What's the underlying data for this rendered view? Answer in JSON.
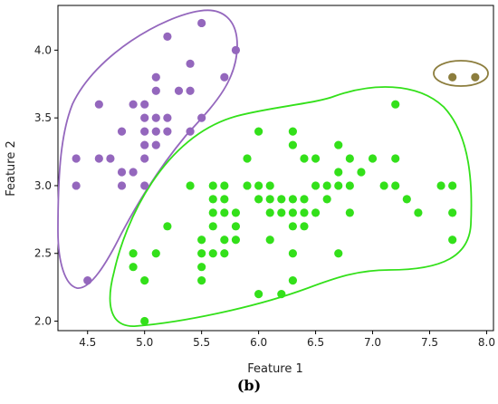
{
  "chart_data": {
    "type": "scatter",
    "xlabel": "Feature 1",
    "ylabel": "Feature 2",
    "xlim": [
      4.24,
      8.06
    ],
    "ylim": [
      1.93,
      4.33
    ],
    "xticks": [
      "4.5",
      "5.0",
      "5.5",
      "6.0",
      "6.5",
      "7.0",
      "7.5",
      "8.0"
    ],
    "yticks": [
      "2.0",
      "2.5",
      "3.0",
      "3.5",
      "4.0"
    ],
    "grid": false,
    "caption": "(b)",
    "colors": {
      "purple": "#9467bd",
      "green": "#33e01a",
      "olive": "#8c7d3d"
    },
    "series": [
      {
        "color": "#9467bd",
        "points": [
          [
            4.4,
            3.2
          ],
          [
            4.4,
            3.0
          ],
          [
            4.5,
            2.3
          ],
          [
            4.6,
            3.6
          ],
          [
            4.6,
            3.2
          ],
          [
            4.7,
            3.2
          ],
          [
            4.8,
            3.4
          ],
          [
            4.8,
            3.1
          ],
          [
            4.8,
            3.0
          ],
          [
            4.9,
            3.6
          ],
          [
            4.9,
            3.1
          ],
          [
            5.0,
            3.6
          ],
          [
            5.0,
            3.5
          ],
          [
            5.0,
            3.4
          ],
          [
            5.0,
            3.3
          ],
          [
            5.0,
            3.2
          ],
          [
            5.0,
            3.0
          ],
          [
            5.1,
            3.8
          ],
          [
            5.1,
            3.7
          ],
          [
            5.1,
            3.5
          ],
          [
            5.1,
            3.4
          ],
          [
            5.1,
            3.3
          ],
          [
            5.2,
            3.5
          ],
          [
            5.2,
            3.4
          ],
          [
            5.2,
            4.1
          ],
          [
            5.3,
            3.7
          ],
          [
            5.4,
            3.9
          ],
          [
            5.4,
            3.7
          ],
          [
            5.4,
            3.4
          ],
          [
            5.5,
            4.2
          ],
          [
            5.5,
            3.5
          ],
          [
            5.7,
            3.8
          ],
          [
            5.8,
            4.0
          ]
        ]
      },
      {
        "color": "#33e01a",
        "points": [
          [
            4.9,
            2.5
          ],
          [
            4.9,
            2.4
          ],
          [
            5.0,
            2.0
          ],
          [
            5.0,
            2.3
          ],
          [
            5.1,
            2.5
          ],
          [
            5.2,
            2.7
          ],
          [
            5.4,
            3.0
          ],
          [
            5.5,
            2.6
          ],
          [
            5.5,
            2.5
          ],
          [
            5.5,
            2.4
          ],
          [
            5.5,
            2.3
          ],
          [
            5.6,
            3.0
          ],
          [
            5.6,
            2.9
          ],
          [
            5.6,
            2.8
          ],
          [
            5.6,
            2.7
          ],
          [
            5.6,
            2.5
          ],
          [
            5.7,
            3.0
          ],
          [
            5.7,
            2.9
          ],
          [
            5.7,
            2.8
          ],
          [
            5.7,
            2.6
          ],
          [
            5.7,
            2.5
          ],
          [
            5.8,
            2.8
          ],
          [
            5.8,
            2.7
          ],
          [
            5.8,
            2.6
          ],
          [
            5.9,
            3.2
          ],
          [
            5.9,
            3.0
          ],
          [
            6.0,
            3.4
          ],
          [
            6.0,
            3.0
          ],
          [
            6.0,
            2.9
          ],
          [
            6.0,
            2.2
          ],
          [
            6.1,
            3.0
          ],
          [
            6.1,
            2.9
          ],
          [
            6.1,
            2.8
          ],
          [
            6.1,
            2.6
          ],
          [
            6.2,
            2.9
          ],
          [
            6.2,
            2.8
          ],
          [
            6.2,
            2.2
          ],
          [
            6.3,
            3.4
          ],
          [
            6.3,
            3.3
          ],
          [
            6.3,
            2.9
          ],
          [
            6.3,
            2.8
          ],
          [
            6.3,
            2.7
          ],
          [
            6.3,
            2.5
          ],
          [
            6.3,
            2.3
          ],
          [
            6.4,
            3.2
          ],
          [
            6.4,
            2.9
          ],
          [
            6.4,
            2.8
          ],
          [
            6.4,
            2.7
          ],
          [
            6.5,
            3.2
          ],
          [
            6.5,
            3.0
          ],
          [
            6.5,
            2.8
          ],
          [
            6.6,
            3.0
          ],
          [
            6.6,
            2.9
          ],
          [
            6.7,
            3.3
          ],
          [
            6.7,
            3.1
          ],
          [
            6.7,
            3.0
          ],
          [
            6.7,
            2.5
          ],
          [
            6.8,
            3.2
          ],
          [
            6.8,
            3.0
          ],
          [
            6.8,
            2.8
          ],
          [
            6.9,
            3.1
          ],
          [
            7.0,
            3.2
          ],
          [
            7.1,
            3.0
          ],
          [
            7.2,
            3.6
          ],
          [
            7.2,
            3.2
          ],
          [
            7.2,
            3.0
          ],
          [
            7.3,
            2.9
          ],
          [
            7.4,
            2.8
          ],
          [
            7.6,
            3.0
          ],
          [
            7.7,
            3.0
          ],
          [
            7.7,
            2.8
          ],
          [
            7.7,
            2.6
          ]
        ]
      },
      {
        "color": "#8c7d3d",
        "points": [
          [
            7.7,
            3.8
          ],
          [
            7.9,
            3.8
          ]
        ]
      }
    ]
  }
}
